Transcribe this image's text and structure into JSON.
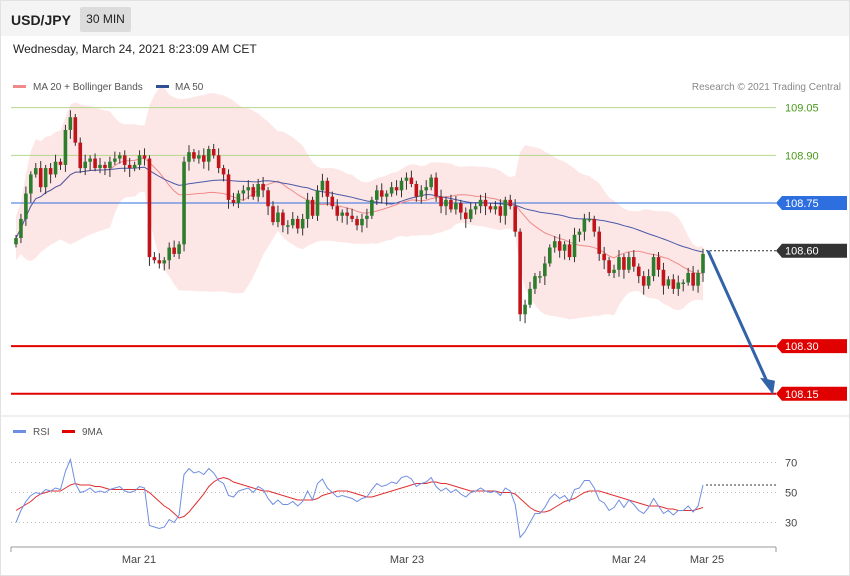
{
  "header": {
    "symbol": "USD/JPY",
    "timeframe": "30 MIN",
    "datetime": "Wednesday, March 24, 2021 8:23:09 AM CET"
  },
  "legend": {
    "ma20_bb": "MA 20 + Bollinger Bands",
    "ma50": "MA 50",
    "rsi": "RSI",
    "rsi_ma": "9MA"
  },
  "copyright": "Research © 2021 Trading Central",
  "colors": {
    "bull": "#2d7d2d",
    "bear": "#c0141a",
    "bb_fill": "#fde3e3",
    "ma20": "#f08a8a",
    "ma50": "#4a5aa8",
    "pivot": "#2e6fe0",
    "support": "#e00000",
    "resistance_line": "#b5d68c",
    "resistance_text": "#4a9a1a",
    "arrow": "#3262a8",
    "rsi_line": "#6f8ee0",
    "rsi_ma_line": "#e03030"
  },
  "chart_data": [
    {
      "type": "candlestick",
      "title": "USD/JPY 30 MIN",
      "ylim": [
        108.08,
        109.2
      ],
      "x_ticks": [
        "Mar 21",
        "Mar 23",
        "Mar 24",
        "Mar 25"
      ],
      "levels": [
        {
          "value": 109.05,
          "label": "109.05",
          "kind": "resistance"
        },
        {
          "value": 108.9,
          "label": "108.90",
          "kind": "resistance"
        },
        {
          "value": 108.75,
          "label": "108.75",
          "kind": "pivot"
        },
        {
          "value": 108.6,
          "label": "108.60",
          "kind": "current"
        },
        {
          "value": 108.3,
          "label": "108.30",
          "kind": "support"
        },
        {
          "value": 108.15,
          "label": "108.15",
          "kind": "support"
        }
      ],
      "projection": {
        "from": 108.6,
        "to": 108.15,
        "direction": "down"
      },
      "closes": [
        108.64,
        108.7,
        108.78,
        108.84,
        108.86,
        108.8,
        108.86,
        108.84,
        108.88,
        108.87,
        108.98,
        109.02,
        108.94,
        108.86,
        108.88,
        108.89,
        108.86,
        108.87,
        108.86,
        108.88,
        108.89,
        108.9,
        108.87,
        108.86,
        108.87,
        108.9,
        108.89,
        108.58,
        108.57,
        108.56,
        108.57,
        108.61,
        108.59,
        108.62,
        108.88,
        108.91,
        108.89,
        108.9,
        108.88,
        108.92,
        108.9,
        108.86,
        108.84,
        108.76,
        108.75,
        108.78,
        108.79,
        108.8,
        108.77,
        108.81,
        108.79,
        108.74,
        108.69,
        108.72,
        108.68,
        108.68,
        108.7,
        108.67,
        108.7,
        108.76,
        108.71,
        108.79,
        108.82,
        108.77,
        108.74,
        108.71,
        108.72,
        108.71,
        108.7,
        108.68,
        108.7,
        108.71,
        108.76,
        108.79,
        108.77,
        108.78,
        108.8,
        108.79,
        108.82,
        108.83,
        108.81,
        108.77,
        108.79,
        108.8,
        108.83,
        108.77,
        108.74,
        108.76,
        108.73,
        108.75,
        108.72,
        108.7,
        108.73,
        108.74,
        108.76,
        108.74,
        108.73,
        108.74,
        108.71,
        108.76,
        108.74,
        108.66,
        108.4,
        108.43,
        108.48,
        108.52,
        108.52,
        108.56,
        108.61,
        108.63,
        108.6,
        108.62,
        108.58,
        108.65,
        108.66,
        108.7,
        108.7,
        108.66,
        108.59,
        108.57,
        108.53,
        108.54,
        108.58,
        108.54,
        108.58,
        108.55,
        108.52,
        108.49,
        108.52,
        108.58,
        108.54,
        108.49,
        108.51,
        108.48,
        108.5,
        108.5,
        108.53,
        108.49,
        108.53,
        108.59
      ]
    },
    {
      "type": "line",
      "title": "RSI",
      "ylim": [
        15,
        85
      ],
      "y_ticks": [
        70,
        50,
        30
      ],
      "series": [
        {
          "name": "RSI",
          "values": [
            30,
            38,
            44,
            48,
            50,
            49,
            52,
            51,
            53,
            52,
            64,
            72,
            56,
            50,
            51,
            53,
            50,
            51,
            50,
            52,
            53,
            54,
            51,
            50,
            51,
            54,
            53,
            28,
            27,
            26,
            27,
            32,
            30,
            35,
            62,
            66,
            63,
            64,
            62,
            66,
            63,
            58,
            56,
            48,
            47,
            51,
            52,
            53,
            50,
            54,
            52,
            46,
            42,
            45,
            42,
            42,
            44,
            41,
            44,
            51,
            45,
            56,
            59,
            53,
            50,
            47,
            48,
            47,
            46,
            44,
            46,
            47,
            52,
            56,
            54,
            55,
            57,
            56,
            60,
            61,
            59,
            54,
            56,
            57,
            60,
            54,
            51,
            53,
            50,
            52,
            49,
            47,
            50,
            51,
            53,
            51,
            50,
            51,
            48,
            53,
            51,
            42,
            20,
            24,
            30,
            36,
            36,
            40,
            46,
            49,
            46,
            48,
            44,
            52,
            53,
            58,
            58,
            53,
            45,
            43,
            38,
            40,
            45,
            40,
            45,
            42,
            38,
            36,
            40,
            46,
            41,
            36,
            38,
            35,
            38,
            38,
            41,
            37,
            41,
            55
          ]
        },
        {
          "name": "9MA",
          "values": [
            38,
            40,
            42,
            44,
            47,
            49,
            50,
            51,
            51,
            51,
            53,
            55,
            56,
            55,
            55,
            55,
            54,
            54,
            53,
            52,
            52,
            52,
            52,
            52,
            52,
            52,
            52,
            50,
            47,
            44,
            41,
            39,
            36,
            33,
            34,
            37,
            41,
            45,
            49,
            54,
            57,
            59,
            60,
            59,
            57,
            56,
            55,
            54,
            53,
            52,
            51,
            51,
            50,
            49,
            48,
            47,
            46,
            45,
            45,
            45,
            45,
            46,
            48,
            49,
            50,
            51,
            51,
            51,
            50,
            49,
            48,
            47,
            47,
            48,
            49,
            50,
            51,
            52,
            53,
            54,
            55,
            56,
            56,
            56,
            57,
            57,
            56,
            56,
            55,
            54,
            53,
            52,
            51,
            51,
            51,
            51,
            51,
            51,
            50,
            50,
            50,
            49,
            46,
            43,
            40,
            38,
            37,
            37,
            38,
            40,
            42,
            44,
            45,
            46,
            48,
            50,
            51,
            51,
            51,
            50,
            49,
            48,
            47,
            46,
            45,
            44,
            43,
            42,
            41,
            41,
            41,
            40,
            39,
            39,
            38,
            38,
            38,
            38,
            39,
            40
          ]
        }
      ],
      "current_value": 55
    }
  ]
}
